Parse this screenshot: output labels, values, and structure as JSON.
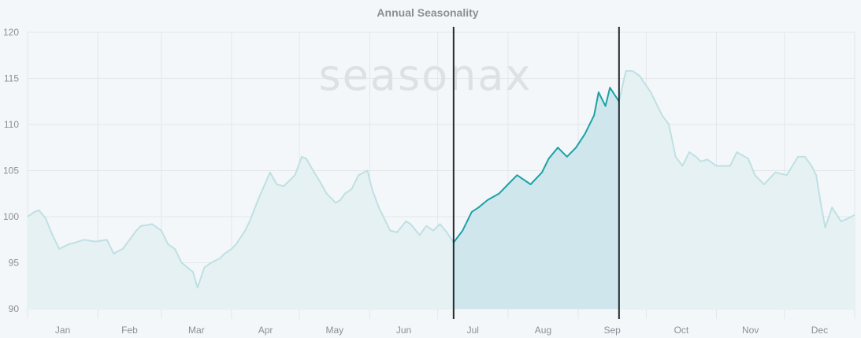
{
  "chart_data": {
    "type": "line",
    "title": "Annual Seasonality",
    "watermark": "seasonax",
    "xlabel": "",
    "ylabel": "",
    "ylim": [
      90,
      120
    ],
    "yticks": [
      90,
      95,
      100,
      105,
      110,
      115,
      120
    ],
    "xlim": [
      0,
      365
    ],
    "months": [
      "Jan",
      "Feb",
      "Mar",
      "Apr",
      "May",
      "Jun",
      "Jul",
      "Aug",
      "Sep",
      "Oct",
      "Nov",
      "Dec"
    ],
    "highlight_range": [
      188,
      261
    ],
    "grid": true,
    "colors": {
      "line_main": "#bfe0e3",
      "line_highlight": "#1fa2a6",
      "fill_main": "#e6f1f4",
      "fill_highlight": "#cfe7ec",
      "marker": "#222a30"
    },
    "series": [
      {
        "x": [
          0,
          3,
          5,
          8,
          11,
          14,
          18,
          21,
          25,
          30,
          35,
          38,
          42,
          48,
          50,
          53,
          55,
          59,
          62,
          65,
          68,
          73,
          75,
          78,
          81,
          85,
          87,
          90,
          92,
          96,
          98,
          102,
          107,
          110,
          113,
          118,
          121,
          123,
          126,
          129,
          132,
          134,
          136,
          138,
          140,
          143,
          146,
          150,
          152,
          155,
          160,
          163,
          167,
          169,
          173,
          176,
          179,
          182,
          185,
          188,
          192,
          196,
          199,
          203,
          208,
          212,
          216,
          222,
          227,
          230,
          234,
          238,
          242,
          246,
          250,
          252,
          255,
          257,
          261,
          264,
          267,
          270,
          275,
          280,
          283,
          286,
          289,
          292,
          295,
          297,
          300,
          304,
          310,
          313,
          318,
          321,
          325,
          330,
          335,
          340,
          343,
          346,
          348,
          350,
          352,
          355,
          359,
          362,
          365
        ],
        "y": [
          100,
          100.5,
          100.7,
          99.8,
          98,
          96.5,
          97,
          97.2,
          97.5,
          97.3,
          97.5,
          96,
          96.5,
          98.5,
          99,
          99.1,
          99.2,
          98.5,
          97,
          96.5,
          95,
          94,
          92.3,
          94.5,
          95,
          95.5,
          96,
          96.5,
          97,
          98.5,
          99.5,
          102,
          104.8,
          103.5,
          103.3,
          104.5,
          106.5,
          106.3,
          105,
          103.8,
          102.5,
          102,
          101.5,
          101.8,
          102.5,
          103,
          104.5,
          105,
          103,
          101,
          98.5,
          98.3,
          99.5,
          99.2,
          98,
          99,
          98.5,
          99.2,
          98.3,
          97.2,
          98.5,
          100.5,
          101,
          101.8,
          102.5,
          103.5,
          104.5,
          103.5,
          104.8,
          106.3,
          107.5,
          106.5,
          107.5,
          109,
          111,
          113.5,
          112,
          114,
          112.5,
          115.8,
          115.8,
          115.3,
          113.5,
          111,
          110,
          106.5,
          105.5,
          107,
          106.5,
          106,
          106.2,
          105.5,
          105.5,
          107,
          106.3,
          104.5,
          103.5,
          104.8,
          104.5,
          106.5,
          106.5,
          105.5,
          104.5,
          101.5,
          98.8,
          101,
          99.5,
          99.8,
          100.2
        ]
      }
    ]
  }
}
